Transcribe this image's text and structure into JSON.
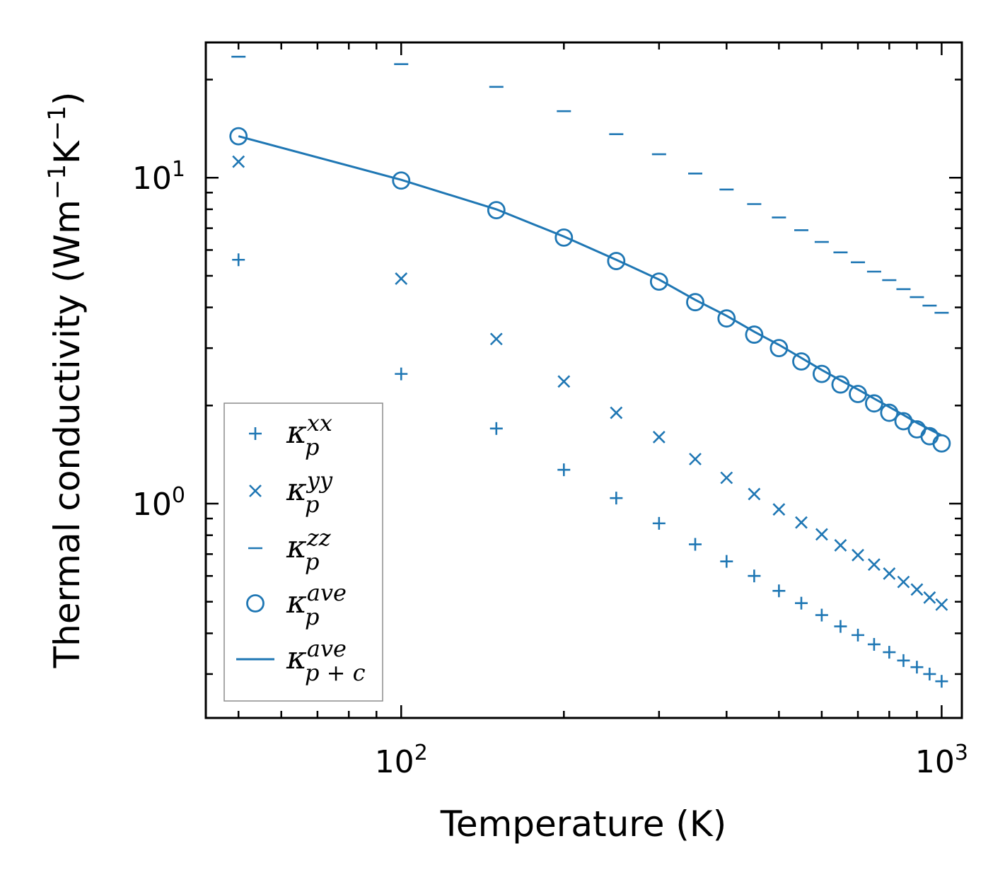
{
  "chart_data": {
    "type": "scatter",
    "xscale": "log",
    "yscale": "log",
    "xlabel": "Temperature (K)",
    "ylabel": "Thermal conductivity (Wm⁻¹K⁻¹)",
    "ylabel_parts": {
      "prefix": "Thermal conductivity (Wm",
      "sup1": "−1",
      "mid": "K",
      "sup2": "−1",
      "suffix": ")"
    },
    "xlim": [
      43.5,
      1090
    ],
    "ylim": [
      0.22,
      26
    ],
    "x_ticks": [
      {
        "base": "10",
        "exp": "2",
        "value": 100
      },
      {
        "base": "10",
        "exp": "3",
        "value": 1000
      }
    ],
    "y_ticks": [
      {
        "base": "10",
        "exp": "0",
        "value": 1
      },
      {
        "base": "10",
        "exp": "1",
        "value": 10
      }
    ],
    "legend_position": "lower-left",
    "x": [
      50,
      100,
      150,
      200,
      250,
      300,
      350,
      400,
      450,
      500,
      550,
      600,
      650,
      700,
      750,
      800,
      850,
      900,
      950,
      1000
    ],
    "series": [
      {
        "name": "κp^xx",
        "legend": {
          "base": "κ",
          "sup": "xx",
          "sub": "p"
        },
        "marker": "plus",
        "values": [
          5.6,
          2.5,
          1.7,
          1.27,
          1.04,
          0.87,
          0.75,
          0.665,
          0.6,
          0.54,
          0.495,
          0.455,
          0.42,
          0.395,
          0.37,
          0.35,
          0.33,
          0.315,
          0.3,
          0.285
        ]
      },
      {
        "name": "κp^yy",
        "legend": {
          "base": "κ",
          "sup": "yy",
          "sub": "p"
        },
        "marker": "x",
        "values": [
          11.2,
          4.9,
          3.2,
          2.37,
          1.9,
          1.6,
          1.37,
          1.2,
          1.07,
          0.96,
          0.875,
          0.805,
          0.745,
          0.695,
          0.65,
          0.61,
          0.575,
          0.545,
          0.515,
          0.49
        ]
      },
      {
        "name": "κp^zz",
        "legend": {
          "base": "κ",
          "sup": "zz",
          "sub": "p"
        },
        "marker": "dash",
        "values": [
          23.5,
          22.3,
          19.0,
          16.0,
          13.6,
          11.8,
          10.3,
          9.2,
          8.3,
          7.55,
          6.9,
          6.35,
          5.9,
          5.5,
          5.15,
          4.85,
          4.55,
          4.3,
          4.05,
          3.85
        ]
      },
      {
        "name": "κp^ave",
        "legend": {
          "base": "κ",
          "sup": "ave",
          "sub": "p"
        },
        "marker": "circle",
        "values": [
          13.4,
          9.8,
          7.95,
          6.55,
          5.55,
          4.8,
          4.15,
          3.7,
          3.3,
          3.0,
          2.73,
          2.5,
          2.32,
          2.17,
          2.03,
          1.9,
          1.79,
          1.69,
          1.61,
          1.53
        ]
      },
      {
        "name": "κp+c^ave",
        "legend": {
          "base": "κ",
          "sup": "ave",
          "sub": "p + c"
        },
        "marker": "line",
        "values": [
          13.4,
          9.85,
          8.0,
          6.6,
          5.6,
          4.87,
          4.22,
          3.77,
          3.37,
          3.07,
          2.8,
          2.57,
          2.39,
          2.24,
          2.1,
          1.98,
          1.87,
          1.77,
          1.69,
          1.62
        ]
      }
    ],
    "colors": {
      "series": "#1f77b4",
      "axes": "#000000",
      "legend_frame": "#8c8c8c"
    }
  }
}
